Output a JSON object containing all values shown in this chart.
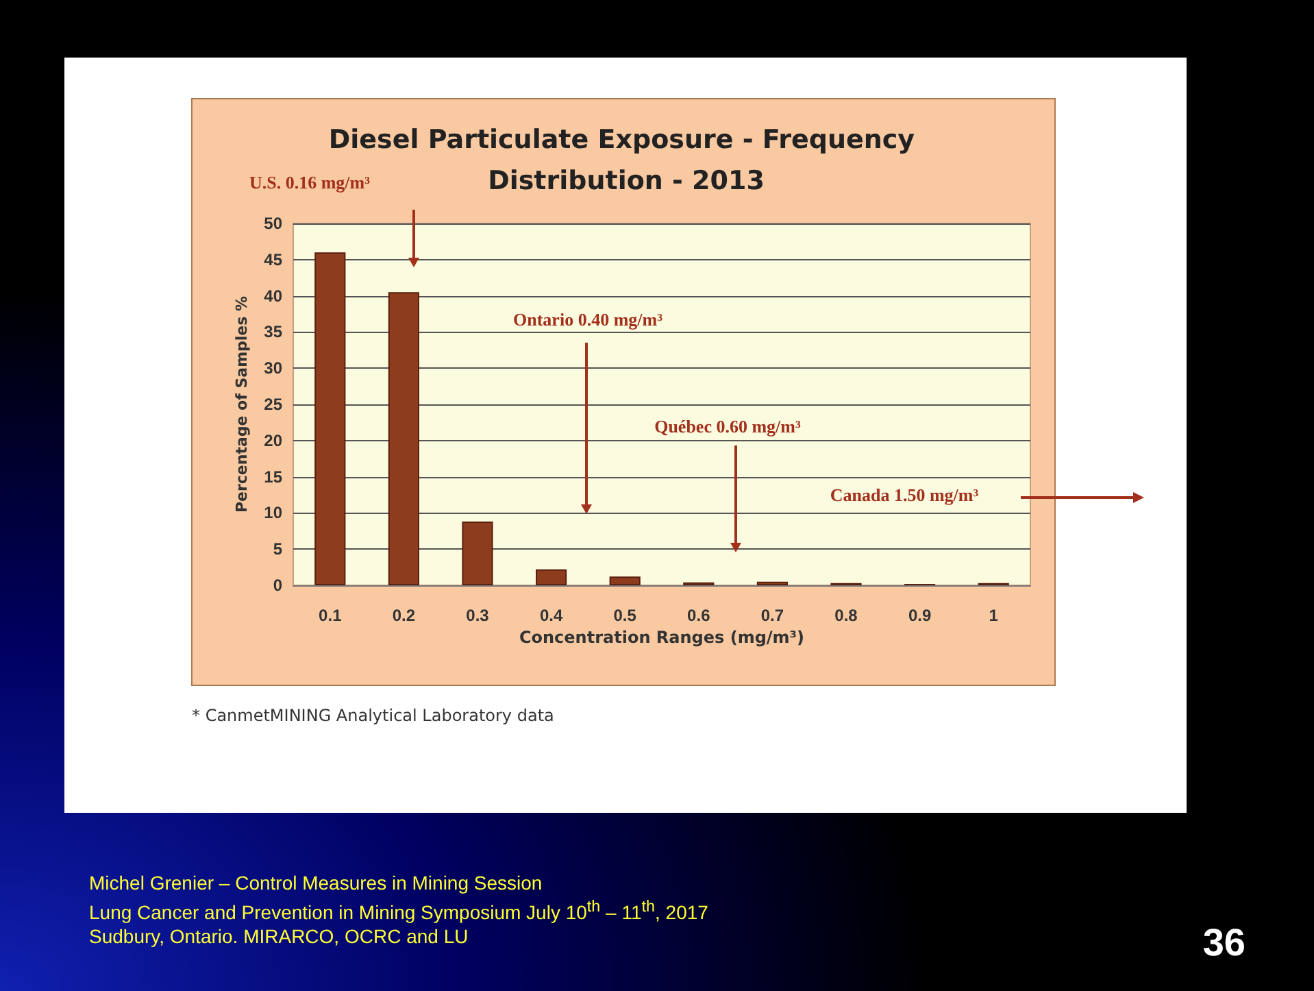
{
  "chart_data": {
    "type": "bar",
    "title": "Diesel Particulate Exposure - Frequency Distribution - 2013",
    "xlabel": "Concentration Ranges (mg/m³)",
    "ylabel": "Percentage of Samples %",
    "categories": [
      "0.1",
      "0.2",
      "0.3",
      "0.4",
      "0.5",
      "0.6",
      "0.7",
      "0.8",
      "0.9",
      "1"
    ],
    "values": [
      46,
      40.5,
      8.8,
      2.2,
      1.2,
      0.4,
      0.5,
      0.3,
      0.2,
      0.3
    ],
    "color": "#8e3c1e",
    "ylim": [
      0,
      50
    ],
    "yticks": [
      0,
      5,
      10,
      15,
      20,
      25,
      30,
      35,
      40,
      45,
      50
    ],
    "grid": "y",
    "annotations": [
      "U.S. 0.16 mg/m³",
      "Ontario 0.40 mg/m³",
      "Québec 0.60 mg/m³",
      "Canada 1.50 mg/m³",
      "* CanmetMINING Analytical Laboratory data",
      "Michel Grenier – Control Measures in Mining Session",
      "Lung Cancer and Prevention in Mining Symposium July 10$^{th}$ – 11$^{th}$, 2017",
      "Sudbury, Ontario. MIRARCO, OCRC and LU",
      "36"
    ]
  }
}
